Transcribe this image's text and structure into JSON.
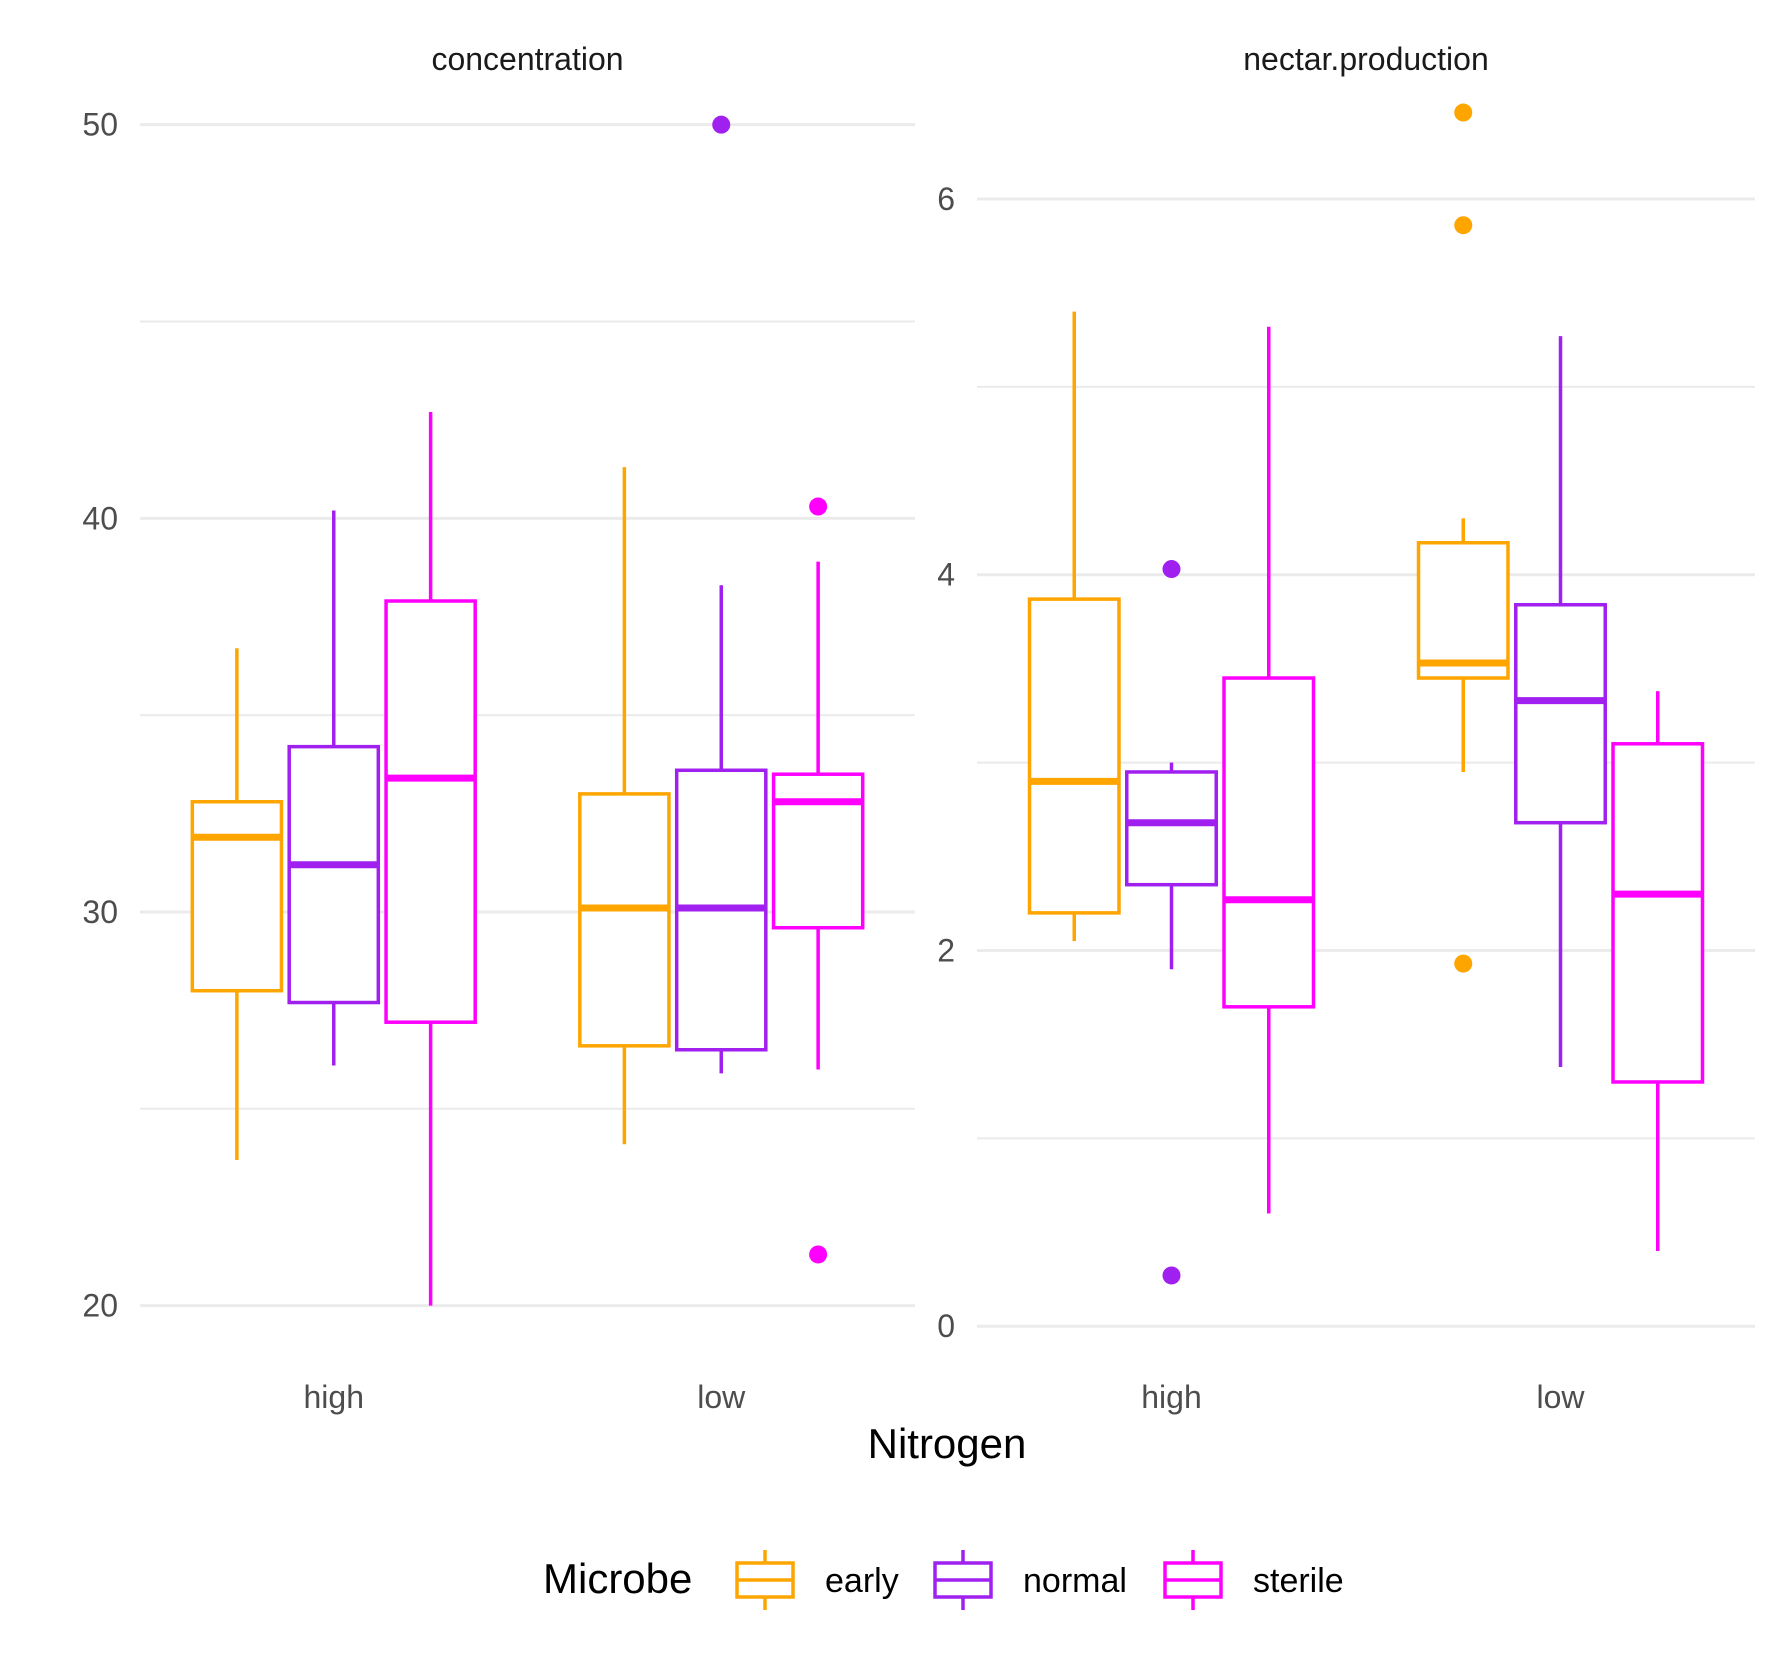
{
  "chart_data": {
    "type": "boxplot",
    "xlabel": "Nitrogen",
    "legend": {
      "title": "Microbe",
      "position": "bottom",
      "entries": [
        {
          "name": "early",
          "color": "#FFA500"
        },
        {
          "name": "normal",
          "color": "#A020F0"
        },
        {
          "name": "sterile",
          "color": "#FF00FF"
        }
      ]
    },
    "grid": true,
    "panels": [
      {
        "strip": "concentration",
        "categories": [
          "high",
          "low"
        ],
        "ylim": [
          19,
          50.5
        ],
        "yticks": [
          20,
          30,
          40,
          50
        ],
        "boxes": [
          {
            "category": "high",
            "group": "early",
            "whisker_low": 23.7,
            "q1": 28.0,
            "median": 31.9,
            "q3": 32.8,
            "whisker_high": 36.7,
            "outliers": []
          },
          {
            "category": "high",
            "group": "normal",
            "whisker_low": 26.1,
            "q1": 27.7,
            "median": 31.2,
            "q3": 34.2,
            "whisker_high": 40.2,
            "outliers": []
          },
          {
            "category": "high",
            "group": "sterile",
            "whisker_low": 20.0,
            "q1": 27.2,
            "median": 33.4,
            "q3": 37.9,
            "whisker_high": 42.7,
            "outliers": []
          },
          {
            "category": "low",
            "group": "early",
            "whisker_low": 24.1,
            "q1": 26.6,
            "median": 30.1,
            "q3": 33.0,
            "whisker_high": 41.3,
            "outliers": []
          },
          {
            "category": "low",
            "group": "normal",
            "whisker_low": 25.9,
            "q1": 26.5,
            "median": 30.1,
            "q3": 33.6,
            "whisker_high": 38.3,
            "outliers": [
              50.0
            ]
          },
          {
            "category": "low",
            "group": "sterile",
            "whisker_low": 26.0,
            "q1": 29.6,
            "median": 32.8,
            "q3": 33.5,
            "whisker_high": 38.9,
            "outliers": [
              40.3,
              21.3
            ]
          }
        ]
      },
      {
        "strip": "nectar.production",
        "categories": [
          "high",
          "low"
        ],
        "ylim": [
          -0.1,
          6.5
        ],
        "yticks": [
          0,
          2,
          4,
          6
        ],
        "boxes": [
          {
            "category": "high",
            "group": "early",
            "whisker_low": 2.05,
            "q1": 2.2,
            "median": 2.9,
            "q3": 3.87,
            "whisker_high": 5.4,
            "outliers": []
          },
          {
            "category": "high",
            "group": "normal",
            "whisker_low": 1.9,
            "q1": 2.35,
            "median": 2.68,
            "q3": 2.95,
            "whisker_high": 3.0,
            "outliers": [
              4.03,
              0.27
            ]
          },
          {
            "category": "high",
            "group": "sterile",
            "whisker_low": 0.6,
            "q1": 1.7,
            "median": 2.27,
            "q3": 3.45,
            "whisker_high": 5.32,
            "outliers": []
          },
          {
            "category": "low",
            "group": "early",
            "whisker_low": 2.95,
            "q1": 3.45,
            "median": 3.53,
            "q3": 4.17,
            "whisker_high": 4.3,
            "outliers": [
              6.46,
              5.86,
              1.93
            ]
          },
          {
            "category": "low",
            "group": "normal",
            "whisker_low": 1.38,
            "q1": 2.68,
            "median": 3.33,
            "q3": 3.84,
            "whisker_high": 5.27,
            "outliers": []
          },
          {
            "category": "low",
            "group": "sterile",
            "whisker_low": 0.4,
            "q1": 1.3,
            "median": 2.3,
            "q3": 3.1,
            "whisker_high": 3.38,
            "outliers": []
          }
        ]
      }
    ]
  }
}
